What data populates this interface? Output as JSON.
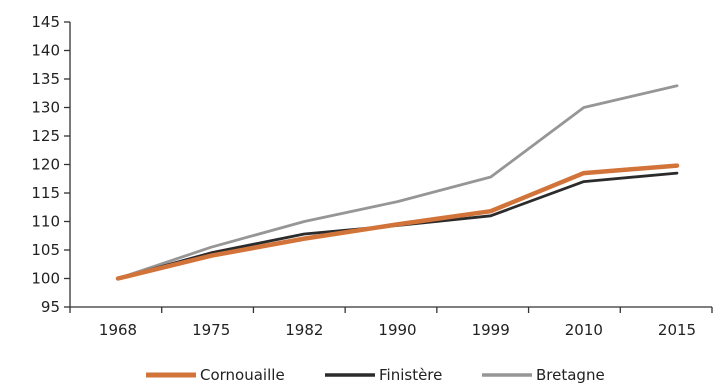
{
  "chart_data": {
    "type": "line",
    "title": "",
    "xlabel": "",
    "ylabel": "",
    "x": [
      "1968",
      "1975",
      "1982",
      "1990",
      "1999",
      "2010",
      "2015"
    ],
    "ylim": [
      95,
      145
    ],
    "y_ticks": [
      95,
      100,
      105,
      110,
      115,
      120,
      125,
      130,
      135,
      140,
      145
    ],
    "grid": false,
    "legend_position": "bottom",
    "series": [
      {
        "name": "Cornouaille",
        "color": "#d2743a",
        "values": [
          100,
          104,
          107,
          109.5,
          111.8,
          118.5,
          119.8
        ]
      },
      {
        "name": "Finistère",
        "color": "#2b2b2b",
        "values": [
          100,
          104.5,
          107.8,
          109.3,
          111,
          117,
          118.5
        ]
      },
      {
        "name": "Bretagne",
        "color": "#969696",
        "values": [
          100,
          105.5,
          110,
          113.5,
          117.8,
          130,
          133.8
        ]
      }
    ]
  }
}
